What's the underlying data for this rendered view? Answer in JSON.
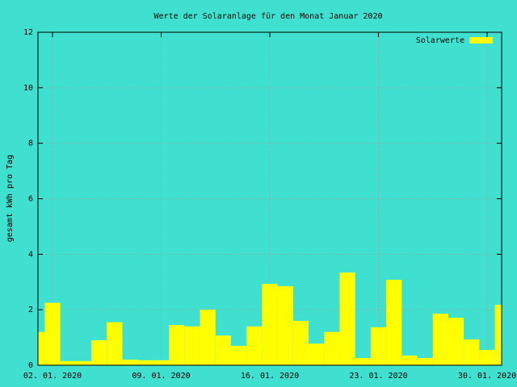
{
  "chart_data": {
    "type": "bar",
    "title": "Werte der Solaranlage für den Monat Januar 2020",
    "y_label": "gesamt kWh pro Tag",
    "x": [
      "2020-01-01",
      "2020-01-02",
      "2020-01-03",
      "2020-01-04",
      "2020-01-05",
      "2020-01-06",
      "2020-01-07",
      "2020-01-08",
      "2020-01-09",
      "2020-01-10",
      "2020-01-11",
      "2020-01-12",
      "2020-01-13",
      "2020-01-14",
      "2020-01-15",
      "2020-01-16",
      "2020-01-17",
      "2020-01-18",
      "2020-01-19",
      "2020-01-20",
      "2020-01-21",
      "2020-01-22",
      "2020-01-23",
      "2020-01-24",
      "2020-01-25",
      "2020-01-26",
      "2020-01-27",
      "2020-01-28",
      "2020-01-29",
      "2020-01-30",
      "2020-01-31"
    ],
    "series": [
      {
        "name": "Solarwerte",
        "color": "#ffff00",
        "values": [
          1.2,
          2.25,
          0.15,
          0.15,
          0.9,
          1.55,
          0.2,
          0.18,
          0.18,
          1.45,
          1.4,
          2.0,
          1.07,
          0.7,
          1.4,
          2.93,
          2.85,
          1.6,
          0.78,
          1.2,
          3.34,
          0.26,
          1.37,
          3.08,
          0.35,
          0.26,
          1.86,
          1.71,
          0.93,
          0.55,
          2.18
        ]
      }
    ],
    "xlim": [
      "2020-01-01T01:30",
      "2020-01-30T22:30"
    ],
    "xticks": [
      {
        "value": "2020-01-02",
        "label": "02. 01. 2020"
      },
      {
        "value": "2020-01-09",
        "label": "09. 01. 2020"
      },
      {
        "value": "2020-01-16",
        "label": "16. 01. 2020"
      },
      {
        "value": "2020-01-23",
        "label": "23. 01. 2020"
      },
      {
        "value": "2020-01-30",
        "label": "30. 01. 2020"
      }
    ],
    "ylim": [
      0,
      12
    ],
    "yticks": [
      0,
      2,
      4,
      6,
      8,
      10,
      12
    ],
    "grid": true,
    "legend": "top-right",
    "background": "#40e0d0"
  }
}
